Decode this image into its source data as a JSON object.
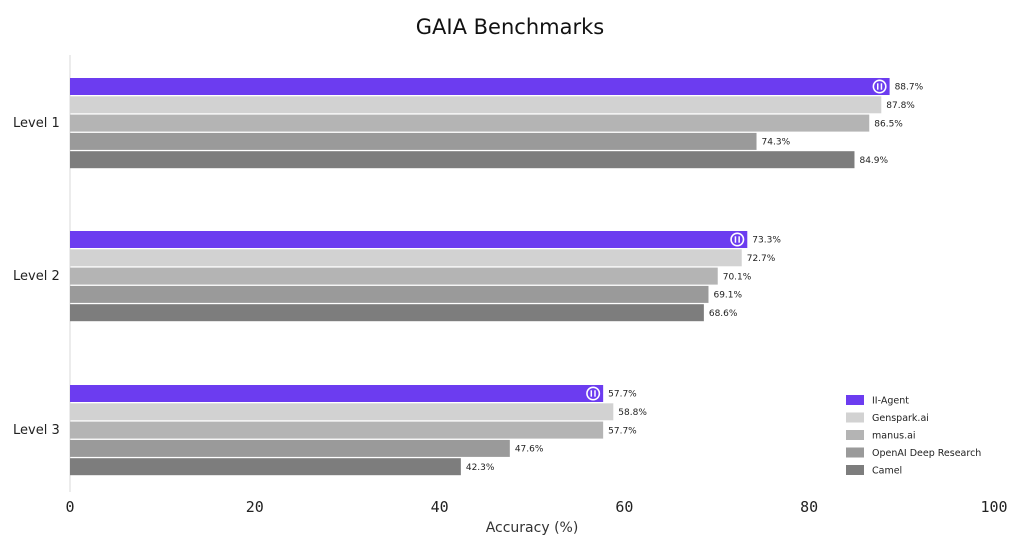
{
  "chart_data": {
    "type": "bar",
    "orientation": "horizontal",
    "title": "GAIA Benchmarks",
    "xlabel": "Accuracy (%)",
    "ylabel": "",
    "xlim": [
      0,
      100
    ],
    "xticks": [
      "0",
      "20",
      "40",
      "60",
      "80",
      "100"
    ],
    "categories": [
      "Level 1",
      "Level 2",
      "Level 3"
    ],
    "series": [
      {
        "name": "II-Agent",
        "color": "#6c3cf0",
        "values": [
          88.7,
          73.3,
          57.7
        ],
        "labels": [
          "88.7%",
          "73.3%",
          "57.7%"
        ],
        "highlight_icon": "ii-agent-logo-icon"
      },
      {
        "name": "Genspark.ai",
        "color": "#d2d2d2",
        "values": [
          87.8,
          72.7,
          58.8
        ],
        "labels": [
          "87.8%",
          "72.7%",
          "58.8%"
        ]
      },
      {
        "name": "manus.ai",
        "color": "#b4b4b4",
        "values": [
          86.5,
          70.1,
          57.7
        ],
        "labels": [
          "86.5%",
          "70.1%",
          "57.7%"
        ]
      },
      {
        "name": "OpenAI Deep Research",
        "color": "#9a9a9a",
        "values": [
          74.3,
          69.1,
          47.6
        ],
        "labels": [
          "74.3%",
          "69.1%",
          "47.6%"
        ]
      },
      {
        "name": "Camel",
        "color": "#7d7d7d",
        "values": [
          84.9,
          68.6,
          42.3
        ],
        "labels": [
          "84.9%",
          "68.6%",
          "42.3%"
        ]
      }
    ],
    "grid": false,
    "legend": "bottom-right"
  }
}
